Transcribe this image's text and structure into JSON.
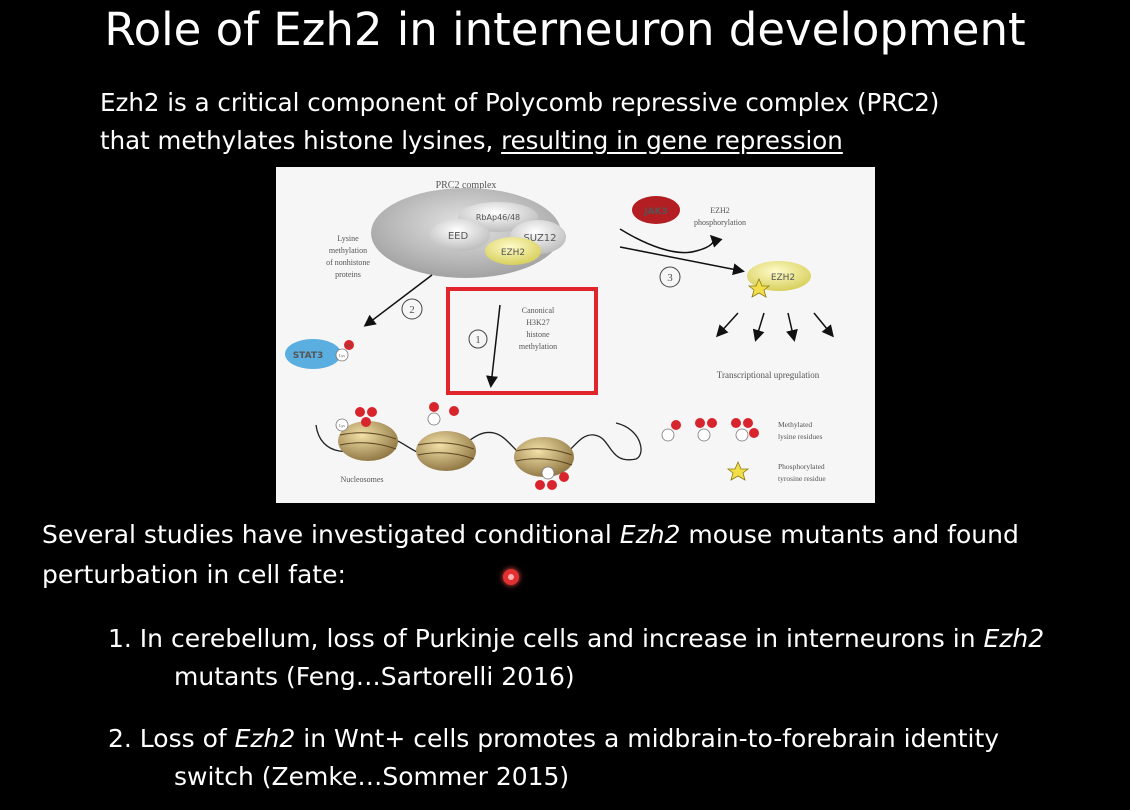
{
  "slide": {
    "title": "Role of Ezh2 in interneuron development",
    "intro_line1": "Ezh2 is a critical component of Polycomb repressive complex (PRC2)",
    "intro_line2_plain": "that methylates histone lysines, ",
    "intro_line2_underlined": "resulting in gene repression",
    "body_part1": "Several studies have investigated conditional ",
    "body_italic": "Ezh2",
    "body_part2": " mouse mutants and found",
    "body_line2": "perturbation in cell fate:",
    "item1_number": "1.",
    "item1_part1": " In cerebellum, loss of Purkinje cells and increase in interneurons in ",
    "item1_italic": "Ezh2",
    "item1_line2": "mutants (Feng…Sartorelli 2016)",
    "item2_number": "2.",
    "item2_part1": " Loss of ",
    "item2_italic": "Ezh2",
    "item2_part2": " in Wnt+ cells promotes a midbrain-to-forebrain identity",
    "item2_line2": "switch (Zemke…Sommer 2015)"
  },
  "figure": {
    "complex_label": "PRC2 complex",
    "rbap_label": "RbAp46/48",
    "eed_label": "EED",
    "suz12_label": "SUZ12",
    "ezh2_label": "EZH2",
    "left_annotation": [
      "Lysine",
      "methylation",
      "of nonhistone",
      "proteins"
    ],
    "step2": "2",
    "stat3_label": "STAT3",
    "lys_label": "Lys",
    "me_label": "Me",
    "step1": "1",
    "canonical_annotation": [
      "Canonical",
      "H3K27",
      "histone",
      "methylation"
    ],
    "jak3_label": "JAK3",
    "phospho_annotation": [
      "EZH2",
      "phosphorylation"
    ],
    "step3": "3",
    "ezh2_right_label": "EZH2",
    "upregulation_label": "Transcriptional upregulation",
    "nucleosomes_label": "Nucleosomes",
    "legend_methyl": [
      "Methylated",
      "lysine residues"
    ],
    "legend_phospho": [
      "Phosphorylated",
      "tyrosine residue"
    ],
    "colors": {
      "red_box": "#e0262c",
      "jak3": "#b31e22",
      "stat3": "#5aaee0",
      "ezh2_yellow": "#e9e27a",
      "me_red": "#d8242c",
      "nucleosome": "#c9a868"
    }
  }
}
